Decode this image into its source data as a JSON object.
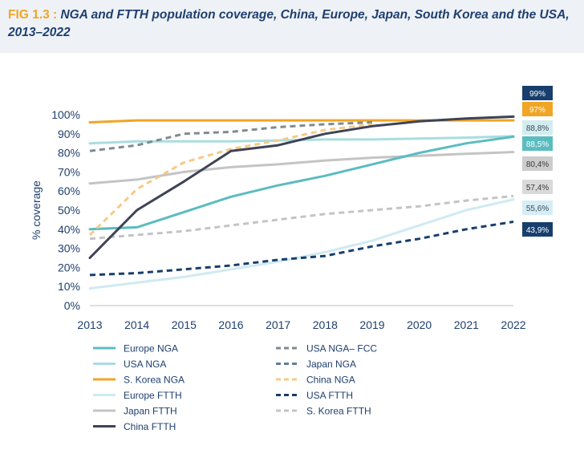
{
  "figure": {
    "fig_label": "FIG 1.3 : ",
    "title": "NGA and FTTH population coverage, China, Europe, Japan, South Korea and the USA, 2013–2022"
  },
  "chart_data": {
    "type": "line",
    "ylabel": "% coverage",
    "xlabel": "",
    "x": [
      2013,
      2014,
      2015,
      2016,
      2017,
      2018,
      2019,
      2020,
      2021,
      2022
    ],
    "ylim": [
      0,
      100
    ],
    "y_ticks": [
      "0%",
      "10%",
      "20%",
      "30%",
      "40%",
      "50%",
      "60%",
      "70%",
      "80%",
      "90%",
      "100%"
    ],
    "legend_position": "bottom",
    "series": [
      {
        "name": "Europe NGA",
        "color": "#5bbcc0",
        "dash": false,
        "values": [
          40,
          41,
          49,
          57,
          63,
          68,
          74,
          80,
          85,
          88.5
        ]
      },
      {
        "name": "USA NGA",
        "color": "#a9dde0",
        "dash": false,
        "values": [
          85,
          86,
          86,
          86,
          86.5,
          87,
          87,
          87.5,
          88,
          88.8
        ]
      },
      {
        "name": "S. Korea NGA",
        "color": "#f0a525",
        "dash": false,
        "values": [
          96,
          97,
          97,
          97,
          97,
          97,
          97,
          97,
          97,
          97
        ]
      },
      {
        "name": "Europe FTTH",
        "color": "#cfeaf2",
        "dash": false,
        "values": [
          9,
          12,
          15,
          19,
          23,
          28,
          34,
          42,
          50,
          55.6
        ]
      },
      {
        "name": "Japan FTTH",
        "color": "#c4c4c4",
        "dash": false,
        "values": [
          64,
          66,
          70,
          72.5,
          74,
          76,
          77.5,
          78.5,
          79.5,
          80.4
        ]
      },
      {
        "name": "China FTTH",
        "color": "#3e4356",
        "dash": false,
        "values": [
          25,
          50,
          65,
          81,
          84,
          90,
          94,
          96.5,
          98,
          99
        ]
      },
      {
        "name": "USA NGA– FCC",
        "color": "#7f8b8e",
        "dash": true,
        "values": [
          81,
          84,
          90,
          91,
          93.5,
          95,
          96,
          null,
          null,
          null
        ]
      },
      {
        "name": "Japan NGA",
        "color": "#5f7f96",
        "dash": true,
        "values": [
          null,
          null,
          null,
          null,
          null,
          null,
          null,
          null,
          null,
          null
        ]
      },
      {
        "name": "China NGA",
        "color": "#f7c987",
        "dash": true,
        "values": [
          37,
          61,
          75,
          82,
          86.5,
          92,
          95,
          null,
          null,
          null
        ]
      },
      {
        "name": "USA FTTH",
        "color": "#173e6c",
        "dash": true,
        "values": [
          16,
          17,
          19,
          21,
          24,
          26,
          31,
          35,
          40,
          43.9
        ]
      },
      {
        "name": "S. Korea FTTH",
        "color": "#c4c4c4",
        "dash": true,
        "values": [
          35,
          37,
          39,
          42,
          45,
          48,
          50,
          52,
          55,
          57.4
        ]
      }
    ],
    "end_labels": [
      {
        "text": "99%",
        "bg": "#173e6c",
        "fg": "#ffffff"
      },
      {
        "text": "97%",
        "bg": "#f0a525",
        "fg": "#ffffff"
      },
      {
        "text": "88,8%",
        "bg": "#d3ecef",
        "fg": "#3a4a5a"
      },
      {
        "text": "88,5%",
        "bg": "#5bbcc0",
        "fg": "#ffffff"
      },
      {
        "text": "80,4%",
        "bg": "#cccccc",
        "fg": "#3a3a3a"
      },
      {
        "text": "57,4%",
        "bg": "#d9d9d9",
        "fg": "#3a3a3a"
      },
      {
        "text": "55,6%",
        "bg": "#d6edf6",
        "fg": "#3a4a5a"
      },
      {
        "text": "43,9%",
        "bg": "#173e6c",
        "fg": "#ffffff"
      }
    ]
  }
}
